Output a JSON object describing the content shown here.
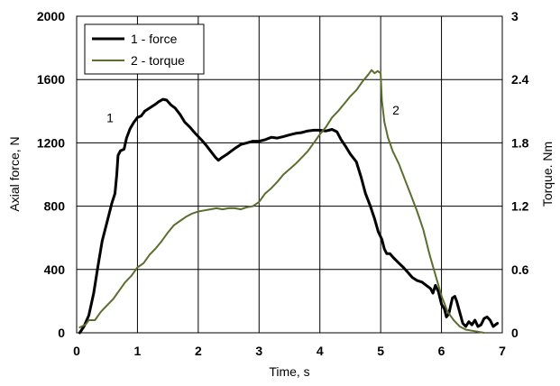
{
  "chart_data": {
    "type": "line",
    "xlabel": "Time, s",
    "ylabel_left": "Axial force, N",
    "ylabel_right": "Torque. Nm",
    "xlim": [
      0,
      7
    ],
    "ylim_left": [
      0,
      2000
    ],
    "ylim_right": [
      0,
      3
    ],
    "x_ticks": [
      "0",
      "1",
      "2",
      "3",
      "4",
      "5",
      "6",
      "7"
    ],
    "y_ticks_left": [
      "0",
      "400",
      "800",
      "1200",
      "1600",
      "2000"
    ],
    "y_ticks_right": [
      "0",
      "0.6",
      "1.2",
      "1.8",
      "2.4",
      "3"
    ],
    "grid": true,
    "legend_position": "top-left",
    "annotations": [
      {
        "text": "1",
        "x": 0.55,
        "y_left": 1330
      },
      {
        "text": "2",
        "x": 5.25,
        "y_left": 1380
      }
    ],
    "series": [
      {
        "name": "1 - force",
        "color": "#000000",
        "axis": "left",
        "points": [
          [
            0.05,
            0
          ],
          [
            0.12,
            40
          ],
          [
            0.2,
            110
          ],
          [
            0.28,
            250
          ],
          [
            0.35,
            420
          ],
          [
            0.42,
            580
          ],
          [
            0.5,
            700
          ],
          [
            0.58,
            820
          ],
          [
            0.63,
            880
          ],
          [
            0.66,
            1000
          ],
          [
            0.68,
            1120
          ],
          [
            0.72,
            1150
          ],
          [
            0.78,
            1160
          ],
          [
            0.82,
            1230
          ],
          [
            0.88,
            1290
          ],
          [
            0.94,
            1330
          ],
          [
            1.0,
            1360
          ],
          [
            1.06,
            1370
          ],
          [
            1.12,
            1400
          ],
          [
            1.2,
            1420
          ],
          [
            1.28,
            1440
          ],
          [
            1.35,
            1460
          ],
          [
            1.42,
            1475
          ],
          [
            1.48,
            1470
          ],
          [
            1.55,
            1440
          ],
          [
            1.62,
            1420
          ],
          [
            1.7,
            1380
          ],
          [
            1.78,
            1330
          ],
          [
            1.86,
            1300
          ],
          [
            1.95,
            1260
          ],
          [
            2.05,
            1220
          ],
          [
            2.12,
            1190
          ],
          [
            2.2,
            1150
          ],
          [
            2.28,
            1110
          ],
          [
            2.33,
            1090
          ],
          [
            2.4,
            1110
          ],
          [
            2.48,
            1130
          ],
          [
            2.55,
            1150
          ],
          [
            2.62,
            1170
          ],
          [
            2.7,
            1190
          ],
          [
            2.8,
            1200
          ],
          [
            2.9,
            1210
          ],
          [
            3.0,
            1210
          ],
          [
            3.1,
            1220
          ],
          [
            3.2,
            1235
          ],
          [
            3.3,
            1230
          ],
          [
            3.4,
            1240
          ],
          [
            3.5,
            1250
          ],
          [
            3.6,
            1260
          ],
          [
            3.7,
            1265
          ],
          [
            3.8,
            1275
          ],
          [
            3.9,
            1280
          ],
          [
            4.0,
            1280
          ],
          [
            4.1,
            1275
          ],
          [
            4.2,
            1285
          ],
          [
            4.28,
            1270
          ],
          [
            4.35,
            1220
          ],
          [
            4.42,
            1180
          ],
          [
            4.5,
            1130
          ],
          [
            4.6,
            1080
          ],
          [
            4.68,
            980
          ],
          [
            4.75,
            880
          ],
          [
            4.83,
            800
          ],
          [
            4.9,
            720
          ],
          [
            4.96,
            640
          ],
          [
            5.02,
            590
          ],
          [
            5.06,
            530
          ],
          [
            5.1,
            500
          ],
          [
            5.15,
            500
          ],
          [
            5.22,
            470
          ],
          [
            5.3,
            440
          ],
          [
            5.38,
            410
          ],
          [
            5.45,
            380
          ],
          [
            5.52,
            350
          ],
          [
            5.6,
            330
          ],
          [
            5.68,
            320
          ],
          [
            5.75,
            300
          ],
          [
            5.82,
            280
          ],
          [
            5.86,
            250
          ],
          [
            5.9,
            300
          ],
          [
            5.95,
            260
          ],
          [
            6.0,
            180
          ],
          [
            6.05,
            150
          ],
          [
            6.08,
            100
          ],
          [
            6.12,
            120
          ],
          [
            6.18,
            220
          ],
          [
            6.22,
            230
          ],
          [
            6.25,
            200
          ],
          [
            6.3,
            130
          ],
          [
            6.35,
            60
          ],
          [
            6.4,
            40
          ],
          [
            6.45,
            70
          ],
          [
            6.5,
            50
          ],
          [
            6.55,
            80
          ],
          [
            6.6,
            40
          ],
          [
            6.65,
            50
          ],
          [
            6.7,
            90
          ],
          [
            6.75,
            100
          ],
          [
            6.8,
            80
          ],
          [
            6.85,
            40
          ],
          [
            6.92,
            60
          ]
        ]
      },
      {
        "name": "2 - torque",
        "color": "#5b6e2e",
        "axis": "right",
        "points": [
          [
            0.05,
            0.05
          ],
          [
            0.15,
            0.08
          ],
          [
            0.2,
            0.12
          ],
          [
            0.3,
            0.12
          ],
          [
            0.4,
            0.2
          ],
          [
            0.5,
            0.26
          ],
          [
            0.6,
            0.32
          ],
          [
            0.7,
            0.4
          ],
          [
            0.8,
            0.48
          ],
          [
            0.9,
            0.54
          ],
          [
            1.0,
            0.62
          ],
          [
            1.1,
            0.66
          ],
          [
            1.2,
            0.74
          ],
          [
            1.3,
            0.8
          ],
          [
            1.4,
            0.87
          ],
          [
            1.5,
            0.95
          ],
          [
            1.6,
            1.02
          ],
          [
            1.7,
            1.06
          ],
          [
            1.8,
            1.1
          ],
          [
            1.9,
            1.13
          ],
          [
            2.0,
            1.15
          ],
          [
            2.1,
            1.16
          ],
          [
            2.2,
            1.17
          ],
          [
            2.3,
            1.18
          ],
          [
            2.4,
            1.17
          ],
          [
            2.5,
            1.18
          ],
          [
            2.6,
            1.18
          ],
          [
            2.7,
            1.17
          ],
          [
            2.8,
            1.19
          ],
          [
            2.9,
            1.2
          ],
          [
            3.0,
            1.24
          ],
          [
            3.1,
            1.32
          ],
          [
            3.2,
            1.37
          ],
          [
            3.3,
            1.43
          ],
          [
            3.4,
            1.5
          ],
          [
            3.5,
            1.55
          ],
          [
            3.6,
            1.6
          ],
          [
            3.7,
            1.66
          ],
          [
            3.8,
            1.72
          ],
          [
            3.9,
            1.8
          ],
          [
            4.0,
            1.88
          ],
          [
            4.1,
            1.95
          ],
          [
            4.2,
            2.04
          ],
          [
            4.3,
            2.1
          ],
          [
            4.4,
            2.17
          ],
          [
            4.5,
            2.24
          ],
          [
            4.6,
            2.3
          ],
          [
            4.7,
            2.38
          ],
          [
            4.8,
            2.45
          ],
          [
            4.85,
            2.49
          ],
          [
            4.9,
            2.46
          ],
          [
            4.95,
            2.48
          ],
          [
            5.0,
            2.46
          ],
          [
            5.02,
            2.2
          ],
          [
            5.06,
            2.0
          ],
          [
            5.12,
            1.85
          ],
          [
            5.2,
            1.72
          ],
          [
            5.3,
            1.6
          ],
          [
            5.4,
            1.45
          ],
          [
            5.5,
            1.3
          ],
          [
            5.6,
            1.15
          ],
          [
            5.7,
            0.98
          ],
          [
            5.8,
            0.75
          ],
          [
            5.9,
            0.55
          ],
          [
            6.0,
            0.35
          ],
          [
            6.1,
            0.2
          ],
          [
            6.2,
            0.12
          ],
          [
            6.3,
            0.06
          ],
          [
            6.4,
            0.03
          ],
          [
            6.5,
            0.02
          ],
          [
            6.6,
            0.01
          ],
          [
            6.7,
            0.0
          ]
        ]
      }
    ]
  }
}
